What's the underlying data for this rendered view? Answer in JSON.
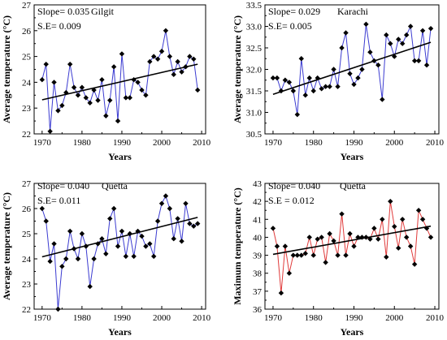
{
  "chart_data": [
    {
      "type": "line",
      "title": "",
      "annotations": [
        "Slope= 0.035",
        "S.E= 0.009",
        "Gilgit"
      ],
      "xlabel": "Years",
      "ylabel": "Average temperature (°C)",
      "xlim": [
        1968,
        2011
      ],
      "ylim": [
        22,
        27
      ],
      "xticks": [
        1970,
        1980,
        1990,
        2000,
        2010
      ],
      "yticks": [
        22,
        23,
        24,
        25,
        26,
        27
      ],
      "line_color": "#3b3bd1",
      "trend": [
        [
          1970,
          23.32
        ],
        [
          2009,
          24.7
        ]
      ],
      "x": [
        1970,
        1971,
        1972,
        1973,
        1974,
        1975,
        1976,
        1977,
        1978,
        1979,
        1980,
        1981,
        1982,
        1983,
        1984,
        1985,
        1986,
        1987,
        1988,
        1989,
        1990,
        1991,
        1992,
        1993,
        1994,
        1995,
        1996,
        1997,
        1998,
        1999,
        2000,
        2001,
        2002,
        2003,
        2004,
        2005,
        2006,
        2007,
        2008,
        2009
      ],
      "values": [
        24.1,
        24.7,
        22.1,
        24.0,
        22.9,
        23.1,
        23.6,
        24.7,
        23.8,
        23.5,
        23.8,
        23.4,
        23.2,
        23.7,
        23.3,
        24.1,
        22.7,
        23.3,
        24.6,
        22.5,
        25.1,
        23.4,
        23.4,
        24.1,
        24.0,
        23.7,
        23.5,
        24.8,
        25.0,
        24.9,
        25.2,
        26.0,
        25.0,
        24.3,
        24.8,
        24.4,
        24.6,
        25.0,
        24.9,
        23.7
      ]
    },
    {
      "type": "line",
      "title": "",
      "annotations": [
        "Slope= 0.029",
        "S.E= 0.005",
        "Karachi"
      ],
      "xlabel": "Years",
      "ylabel": "Average temperature (°C)",
      "xlim": [
        1968,
        2011
      ],
      "ylim": [
        30.5,
        33.5
      ],
      "xticks": [
        1970,
        1980,
        1990,
        2000,
        2010
      ],
      "yticks": [
        30.5,
        31.0,
        31.5,
        32.0,
        32.5,
        33.0,
        33.5
      ],
      "line_color": "#3b3bd1",
      "trend": [
        [
          1970,
          31.42
        ],
        [
          2009,
          32.63
        ]
      ],
      "x": [
        1970,
        1971,
        1972,
        1973,
        1974,
        1975,
        1976,
        1977,
        1978,
        1979,
        1980,
        1981,
        1982,
        1983,
        1984,
        1985,
        1986,
        1987,
        1988,
        1989,
        1990,
        1991,
        1992,
        1993,
        1994,
        1995,
        1996,
        1997,
        1998,
        1999,
        2000,
        2001,
        2002,
        2003,
        2004,
        2005,
        2006,
        2007,
        2008,
        2009
      ],
      "values": [
        31.8,
        31.8,
        31.5,
        31.75,
        31.7,
        31.5,
        30.95,
        32.25,
        31.4,
        31.8,
        31.5,
        31.8,
        31.55,
        31.6,
        31.6,
        32.0,
        31.6,
        32.5,
        32.85,
        31.9,
        31.65,
        31.8,
        32.0,
        33.05,
        32.4,
        32.2,
        32.1,
        31.3,
        32.8,
        32.6,
        32.3,
        32.7,
        32.6,
        32.8,
        33.0,
        32.2,
        32.2,
        32.9,
        32.1,
        32.95
      ]
    },
    {
      "type": "line",
      "title": "",
      "annotations": [
        "Slope= 0.040",
        "S.E= 0.011",
        "Quetta"
      ],
      "xlabel": "Years",
      "ylabel": "Average temperature (°C)",
      "xlim": [
        1968,
        2011
      ],
      "ylim": [
        22,
        27
      ],
      "xticks": [
        1970,
        1980,
        1990,
        2000,
        2010
      ],
      "yticks": [
        22,
        23,
        24,
        25,
        26,
        27
      ],
      "line_color": "#3b3bd1",
      "trend": [
        [
          1970,
          24.08
        ],
        [
          2009,
          25.65
        ]
      ],
      "x": [
        1970,
        1971,
        1972,
        1973,
        1974,
        1975,
        1976,
        1977,
        1978,
        1979,
        1980,
        1981,
        1982,
        1983,
        1984,
        1985,
        1986,
        1987,
        1988,
        1989,
        1990,
        1991,
        1992,
        1993,
        1994,
        1995,
        1996,
        1997,
        1998,
        1999,
        2000,
        2001,
        2002,
        2003,
        2004,
        2005,
        2006,
        2007,
        2008,
        2009
      ],
      "values": [
        26.0,
        25.5,
        23.9,
        24.6,
        22.0,
        23.7,
        24.0,
        25.1,
        24.4,
        24.0,
        25.0,
        24.5,
        22.9,
        24.0,
        24.6,
        24.8,
        24.2,
        25.6,
        26.0,
        24.5,
        25.1,
        24.1,
        25.0,
        24.1,
        25.1,
        24.9,
        24.5,
        24.6,
        24.1,
        25.5,
        26.2,
        26.5,
        26.0,
        24.8,
        25.6,
        24.7,
        26.2,
        25.4,
        25.3,
        25.4
      ]
    },
    {
      "type": "line",
      "title": "",
      "annotations": [
        "Slope= 0.040",
        "S.E = 0.012",
        "Quetta"
      ],
      "xlabel": "Years",
      "ylabel": "Maximum temperature (°C)",
      "xlim": [
        1968,
        2011
      ],
      "ylim": [
        36,
        43
      ],
      "xticks": [
        1970,
        1980,
        1990,
        2000,
        2010
      ],
      "yticks": [
        36,
        37,
        38,
        39,
        40,
        41,
        42,
        43
      ],
      "line_color": "#e03a3a",
      "trend": [
        [
          1970,
          39.05
        ],
        [
          2009,
          40.62
        ]
      ],
      "x": [
        1970,
        1971,
        1972,
        1973,
        1974,
        1975,
        1976,
        1977,
        1978,
        1979,
        1980,
        1981,
        1982,
        1983,
        1984,
        1985,
        1986,
        1987,
        1988,
        1989,
        1990,
        1991,
        1992,
        1993,
        1994,
        1995,
        1996,
        1997,
        1998,
        1999,
        2000,
        2001,
        2002,
        2003,
        2004,
        2005,
        2006,
        2007,
        2008,
        2009
      ],
      "values": [
        40.5,
        39.5,
        36.9,
        39.5,
        38.0,
        39.0,
        39.0,
        39.0,
        39.1,
        40.0,
        39.0,
        39.9,
        40.0,
        38.6,
        40.2,
        39.8,
        39.0,
        41.3,
        39.0,
        40.2,
        39.5,
        40.0,
        40.0,
        40.0,
        39.9,
        40.5,
        39.9,
        41.0,
        38.9,
        42.0,
        40.6,
        39.4,
        41.0,
        40.0,
        39.5,
        38.5,
        41.5,
        41.0,
        40.5,
        40.0
      ]
    }
  ]
}
